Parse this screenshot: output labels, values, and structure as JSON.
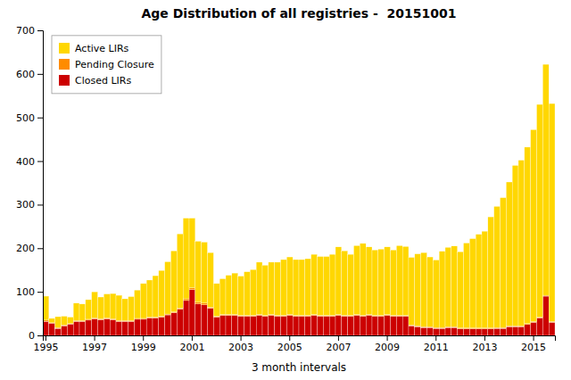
{
  "chart_data": {
    "type": "bar",
    "title": "Age Distribution of all registries -  20151001",
    "x_label": "3 month intervals",
    "stacked": true,
    "grid": false,
    "legend": "upper left",
    "categories": [
      "1995",
      null,
      null,
      null,
      null,
      null,
      null,
      null,
      "1997",
      null,
      null,
      null,
      null,
      null,
      null,
      null,
      "1999",
      null,
      null,
      null,
      null,
      null,
      null,
      null,
      "2001",
      null,
      null,
      null,
      null,
      null,
      null,
      null,
      "2003",
      null,
      null,
      null,
      null,
      null,
      null,
      null,
      "2005",
      null,
      null,
      null,
      null,
      null,
      null,
      null,
      "2007",
      null,
      null,
      null,
      null,
      null,
      null,
      null,
      "2009",
      null,
      null,
      null,
      null,
      null,
      null,
      null,
      "2011",
      null,
      null,
      null,
      null,
      null,
      null,
      null,
      "2013",
      null,
      null,
      null,
      null,
      null,
      null,
      null,
      "2015",
      null,
      null,
      null
    ],
    "ylim": [
      0,
      700
    ],
    "yticks": [
      0,
      100,
      200,
      300,
      400,
      500,
      600,
      700
    ],
    "series": [
      {
        "name": "Closed LIRs",
        "color": "#CC0000",
        "values": [
          32,
          28,
          16,
          22,
          26,
          32,
          32,
          35,
          38,
          36,
          38,
          36,
          32,
          32,
          32,
          37,
          37,
          40,
          40,
          42,
          47,
          52,
          60,
          80,
          105,
          72,
          70,
          62,
          42,
          46,
          46,
          46,
          44,
          44,
          44,
          46,
          44,
          46,
          44,
          44,
          46,
          44,
          44,
          44,
          46,
          44,
          44,
          44,
          46,
          44,
          44,
          46,
          44,
          46,
          44,
          44,
          46,
          44,
          44,
          44,
          22,
          20,
          18,
          18,
          16,
          16,
          18,
          18,
          15,
          15,
          15,
          15,
          15,
          15,
          16,
          16,
          20,
          20,
          20,
          25,
          30,
          40,
          90,
          30
        ]
      },
      {
        "name": "Pending Closure",
        "color": "#FF8C00",
        "values": [
          3,
          1,
          2,
          2,
          1,
          2,
          2,
          2,
          2,
          2,
          2,
          2,
          2,
          2,
          2,
          2,
          2,
          2,
          2,
          2,
          2,
          2,
          3,
          4,
          4,
          4,
          4,
          3,
          2,
          2,
          2,
          2,
          2,
          2,
          2,
          2,
          2,
          2,
          2,
          2,
          2,
          2,
          2,
          2,
          2,
          2,
          2,
          2,
          2,
          2,
          2,
          2,
          2,
          2,
          2,
          2,
          2,
          2,
          2,
          2,
          2,
          2,
          2,
          2,
          2,
          2,
          2,
          2,
          2,
          2,
          2,
          2,
          2,
          2,
          2,
          2,
          2,
          2,
          2,
          2,
          2,
          2,
          2,
          2
        ]
      },
      {
        "name": "Active LIRs",
        "color": "#FFD700",
        "values": [
          55,
          10,
          25,
          20,
          15,
          40,
          38,
          45,
          60,
          50,
          55,
          58,
          58,
          50,
          55,
          65,
          80,
          85,
          95,
          105,
          120,
          140,
          170,
          185,
          160,
          140,
          140,
          125,
          75,
          82,
          90,
          95,
          90,
          100,
          105,
          120,
          115,
          120,
          122,
          128,
          132,
          128,
          128,
          130,
          138,
          135,
          135,
          140,
          155,
          148,
          140,
          158,
          165,
          155,
          150,
          152,
          155,
          150,
          160,
          158,
          155,
          165,
          170,
          160,
          155,
          175,
          182,
          185,
          175,
          195,
          205,
          215,
          222,
          255,
          278,
          298,
          330,
          368,
          380,
          405,
          440,
          488,
          530,
          500
        ]
      }
    ]
  }
}
